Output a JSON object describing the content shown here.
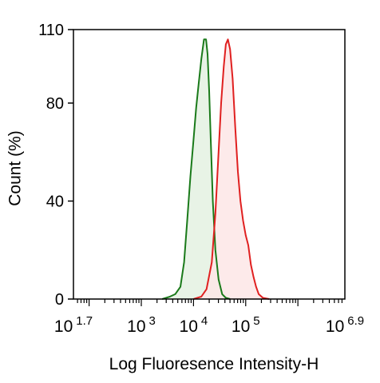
{
  "chart_data": {
    "type": "area",
    "title": "",
    "xlabel": "Log Fluoresence Intensity-H",
    "ylabel": "Count  (%)",
    "x_scale": "log10",
    "xlim": [
      1.7,
      6.9
    ],
    "ylim": [
      0,
      110
    ],
    "y_ticks": [
      "0",
      "40",
      "80",
      "110"
    ],
    "x_ticks": [
      {
        "base": "10",
        "exp": "1.7"
      },
      {
        "base": "10",
        "exp": "3"
      },
      {
        "base": "10",
        "exp": "4"
      },
      {
        "base": "10",
        "exp": "5"
      },
      {
        "base": "10",
        "exp": "6.9"
      }
    ],
    "grid": false,
    "legend": "none",
    "series": [
      {
        "color": "#1a7a1a",
        "fill": "#e4f1e2",
        "x_log10": [
          3.4,
          3.55,
          3.65,
          3.75,
          3.82,
          3.88,
          3.94,
          4.0,
          4.05,
          4.1,
          4.15,
          4.2,
          4.24,
          4.27,
          4.3,
          4.33,
          4.37,
          4.42,
          4.48,
          4.55,
          4.62,
          4.7
        ],
        "y": [
          0,
          1,
          2,
          5,
          15,
          32,
          50,
          65,
          78,
          88,
          98,
          106,
          106,
          100,
          85,
          65,
          40,
          20,
          8,
          2,
          0.5,
          0
        ]
      },
      {
        "color": "#e02020",
        "fill": "#fde6e6",
        "x_log10": [
          4.0,
          4.15,
          4.25,
          4.35,
          4.42,
          4.48,
          4.53,
          4.58,
          4.62,
          4.66,
          4.7,
          4.75,
          4.8,
          4.85,
          4.9,
          4.95,
          5.0,
          5.05,
          5.1,
          5.15,
          5.2,
          5.25,
          5.33,
          5.45
        ],
        "y": [
          0,
          1,
          4,
          15,
          35,
          60,
          80,
          95,
          104,
          106,
          102,
          90,
          70,
          52,
          40,
          32,
          26,
          22,
          14,
          9,
          5,
          2,
          0.5,
          0
        ]
      }
    ]
  }
}
